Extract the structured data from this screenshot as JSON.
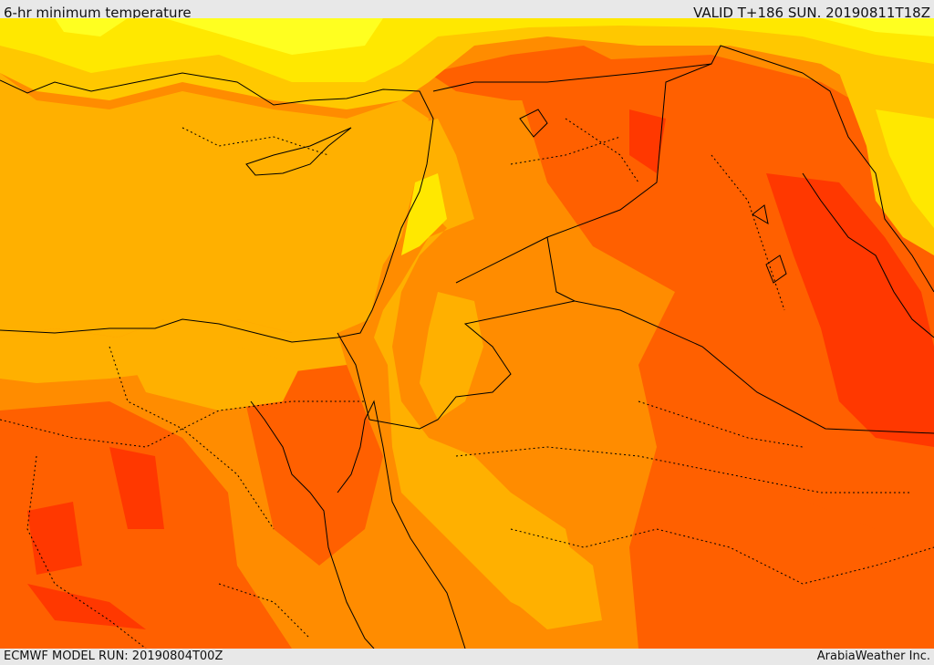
{
  "header": {
    "title": "6-hr minimum temperature",
    "valid": "VALID T+186 SUN. 20190811T18Z"
  },
  "footer": {
    "model_run": "ECMWF MODEL RUN: 20190804T00Z",
    "credit": "ArabiaWeather Inc."
  },
  "map": {
    "colors": {
      "sea": "#ffb000",
      "warm_orange": "#ff8c00",
      "hot_orange": "#ff6000",
      "hottest_red": "#ff3800",
      "light_orange": "#ffc800",
      "yellow": "#ffe800",
      "pale_yellow": "#ffff20",
      "boundary": "#000000"
    }
  }
}
